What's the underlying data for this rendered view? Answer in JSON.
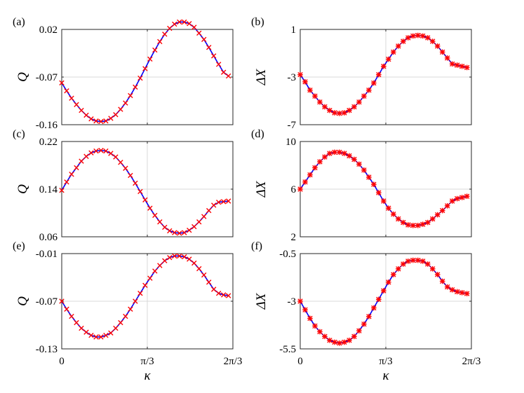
{
  "chart_data": [
    {
      "type": "line",
      "panel": "(a)",
      "ylabel": "Q",
      "xlabel": "",
      "ylim": [
        -0.16,
        0.02
      ],
      "yticks": [
        "0.02",
        "-0.07",
        "-0.16"
      ],
      "ytick_values": [
        0.02,
        -0.07,
        -0.16
      ],
      "xlim": [
        0,
        2.0944
      ],
      "xticks": [
        "0",
        "π/3",
        "2π/3"
      ],
      "xtick_values": [
        0,
        1.0472,
        2.0944
      ],
      "grid": true,
      "series": [
        {
          "marker": "x",
          "color": "#ff0000",
          "line_color": "#0000ff",
          "x": [
            0,
            0.06,
            0.12,
            0.18,
            0.24,
            0.3,
            0.36,
            0.42,
            0.48,
            0.54,
            0.6,
            0.66,
            0.72,
            0.78,
            0.84,
            0.9,
            0.96,
            1.02,
            1.08,
            1.14,
            1.2,
            1.26,
            1.32,
            1.38,
            1.44,
            1.5,
            1.56,
            1.62,
            1.68,
            1.74,
            1.8,
            1.86,
            1.92,
            1.98,
            2.04
          ],
          "y": [
            -0.081,
            -0.096,
            -0.11,
            -0.122,
            -0.133,
            -0.142,
            -0.149,
            -0.153,
            -0.154,
            -0.153,
            -0.148,
            -0.141,
            -0.131,
            -0.119,
            -0.105,
            -0.089,
            -0.072,
            -0.054,
            -0.036,
            -0.019,
            -0.003,
            0.011,
            0.022,
            0.03,
            0.034,
            0.034,
            0.031,
            0.024,
            0.013,
            0.001,
            -0.014,
            -0.03,
            -0.046,
            -0.061,
            -0.068
          ]
        }
      ]
    },
    {
      "type": "line",
      "panel": "(b)",
      "ylabel": "ΔX",
      "xlabel": "",
      "ylim": [
        -7,
        1
      ],
      "yticks": [
        "1",
        "-3",
        "-7"
      ],
      "ytick_values": [
        1,
        -3,
        -7
      ],
      "xlim": [
        0,
        2.0944
      ],
      "xticks": [
        "0",
        "π/3",
        "2π/3"
      ],
      "xtick_values": [
        0,
        1.0472,
        2.0944
      ],
      "grid": true,
      "series": [
        {
          "marker": "*",
          "color": "#ff0000",
          "line_color": "#0000ff",
          "x": [
            0,
            0.06,
            0.12,
            0.18,
            0.24,
            0.3,
            0.36,
            0.42,
            0.48,
            0.54,
            0.6,
            0.66,
            0.72,
            0.78,
            0.84,
            0.9,
            0.96,
            1.02,
            1.08,
            1.14,
            1.2,
            1.26,
            1.32,
            1.38,
            1.44,
            1.5,
            1.56,
            1.62,
            1.68,
            1.74,
            1.8,
            1.86,
            1.92,
            1.98,
            2.04
          ],
          "y": [
            -2.8,
            -3.4,
            -4.1,
            -4.6,
            -5.1,
            -5.5,
            -5.8,
            -6.0,
            -6.05,
            -6.0,
            -5.8,
            -5.5,
            -5.1,
            -4.6,
            -4.1,
            -3.5,
            -2.8,
            -2.1,
            -1.5,
            -0.9,
            -0.4,
            0.0,
            0.3,
            0.45,
            0.5,
            0.45,
            0.3,
            0.0,
            -0.4,
            -0.9,
            -1.4,
            -1.9,
            -2.0,
            -2.1,
            -2.2
          ]
        }
      ]
    },
    {
      "type": "line",
      "panel": "(c)",
      "ylabel": "Q",
      "xlabel": "",
      "ylim": [
        0.06,
        0.22
      ],
      "yticks": [
        "0.22",
        "0.14",
        "0.06"
      ],
      "ytick_values": [
        0.22,
        0.14,
        0.06
      ],
      "xlim": [
        0,
        2.0944
      ],
      "xticks": [
        "0",
        "π/3",
        "2π/3"
      ],
      "xtick_values": [
        0,
        1.0472,
        2.0944
      ],
      "grid": true,
      "series": [
        {
          "marker": "x",
          "color": "#ff0000",
          "line_color": "#0000ff",
          "x": [
            0,
            0.06,
            0.12,
            0.18,
            0.24,
            0.3,
            0.36,
            0.42,
            0.48,
            0.54,
            0.6,
            0.66,
            0.72,
            0.78,
            0.84,
            0.9,
            0.96,
            1.02,
            1.08,
            1.14,
            1.2,
            1.26,
            1.32,
            1.38,
            1.44,
            1.5,
            1.56,
            1.62,
            1.68,
            1.74,
            1.8,
            1.86,
            1.92,
            1.98,
            2.04
          ],
          "y": [
            0.138,
            0.152,
            0.165,
            0.176,
            0.187,
            0.195,
            0.201,
            0.204,
            0.205,
            0.204,
            0.2,
            0.194,
            0.185,
            0.175,
            0.163,
            0.15,
            0.136,
            0.122,
            0.108,
            0.096,
            0.085,
            0.076,
            0.07,
            0.067,
            0.066,
            0.067,
            0.071,
            0.077,
            0.085,
            0.094,
            0.104,
            0.113,
            0.118,
            0.119,
            0.12
          ]
        }
      ]
    },
    {
      "type": "line",
      "panel": "(d)",
      "ylabel": "ΔX",
      "xlabel": "",
      "ylim": [
        2,
        10
      ],
      "yticks": [
        "10",
        "6",
        "2"
      ],
      "ytick_values": [
        10,
        6,
        2
      ],
      "xlim": [
        0,
        2.0944
      ],
      "xticks": [
        "0",
        "π/3",
        "2π/3"
      ],
      "xtick_values": [
        0,
        1.0472,
        2.0944
      ],
      "grid": true,
      "series": [
        {
          "marker": "*",
          "color": "#ff0000",
          "line_color": "#0000ff",
          "x": [
            0,
            0.06,
            0.12,
            0.18,
            0.24,
            0.3,
            0.36,
            0.42,
            0.48,
            0.54,
            0.6,
            0.66,
            0.72,
            0.78,
            0.84,
            0.9,
            0.96,
            1.02,
            1.08,
            1.14,
            1.2,
            1.26,
            1.32,
            1.38,
            1.44,
            1.5,
            1.56,
            1.62,
            1.68,
            1.74,
            1.8,
            1.86,
            1.92,
            1.98,
            2.04
          ],
          "y": [
            6.0,
            6.6,
            7.2,
            7.8,
            8.3,
            8.7,
            9.0,
            9.1,
            9.1,
            9.0,
            8.8,
            8.5,
            8.1,
            7.6,
            7.0,
            6.4,
            5.7,
            5.0,
            4.4,
            3.9,
            3.5,
            3.2,
            3.0,
            2.95,
            2.95,
            3.05,
            3.2,
            3.5,
            3.85,
            4.2,
            4.6,
            5.0,
            5.2,
            5.3,
            5.4
          ]
        }
      ]
    },
    {
      "type": "line",
      "panel": "(e)",
      "ylabel": "Q",
      "xlabel": "κ",
      "ylim": [
        -0.13,
        -0.01
      ],
      "yticks": [
        "-0.01",
        "-0.07",
        "-0.13"
      ],
      "ytick_values": [
        -0.01,
        -0.07,
        -0.13
      ],
      "xlim": [
        0,
        2.0944
      ],
      "xticks": [
        "0",
        "π/3",
        "2π/3"
      ],
      "xtick_values": [
        0,
        1.0472,
        2.0944
      ],
      "grid": true,
      "series": [
        {
          "marker": "x",
          "color": "#ff0000",
          "line_color": "#0000ff",
          "x": [
            0,
            0.06,
            0.12,
            0.18,
            0.24,
            0.3,
            0.36,
            0.42,
            0.48,
            0.54,
            0.6,
            0.66,
            0.72,
            0.78,
            0.84,
            0.9,
            0.96,
            1.02,
            1.08,
            1.14,
            1.2,
            1.26,
            1.32,
            1.38,
            1.44,
            1.5,
            1.56,
            1.62,
            1.68,
            1.74,
            1.8,
            1.86,
            1.92,
            1.98,
            2.04
          ],
          "y": [
            -0.07,
            -0.08,
            -0.089,
            -0.097,
            -0.104,
            -0.109,
            -0.113,
            -0.115,
            -0.115,
            -0.113,
            -0.11,
            -0.104,
            -0.097,
            -0.089,
            -0.08,
            -0.07,
            -0.06,
            -0.05,
            -0.041,
            -0.032,
            -0.025,
            -0.019,
            -0.015,
            -0.013,
            -0.013,
            -0.014,
            -0.017,
            -0.022,
            -0.029,
            -0.037,
            -0.046,
            -0.055,
            -0.06,
            -0.062,
            -0.063
          ]
        }
      ]
    },
    {
      "type": "line",
      "panel": "(f)",
      "ylabel": "ΔX",
      "xlabel": "κ",
      "ylim": [
        -5.5,
        -0.5
      ],
      "yticks": [
        "-0.5",
        "-3",
        "-5.5"
      ],
      "ytick_values": [
        -0.5,
        -3,
        -5.5
      ],
      "xlim": [
        0,
        2.0944
      ],
      "xticks": [
        "0",
        "π/3",
        "2π/3"
      ],
      "xtick_values": [
        0,
        1.0472,
        2.0944
      ],
      "grid": true,
      "series": [
        {
          "marker": "*",
          "color": "#ff0000",
          "line_color": "#0000ff",
          "x": [
            0,
            0.06,
            0.12,
            0.18,
            0.24,
            0.3,
            0.36,
            0.42,
            0.48,
            0.54,
            0.6,
            0.66,
            0.72,
            0.78,
            0.84,
            0.9,
            0.96,
            1.02,
            1.08,
            1.14,
            1.2,
            1.26,
            1.32,
            1.38,
            1.44,
            1.5,
            1.56,
            1.62,
            1.68,
            1.74,
            1.8,
            1.86,
            1.92,
            1.98,
            2.04
          ],
          "y": [
            -3.0,
            -3.45,
            -3.9,
            -4.3,
            -4.6,
            -4.85,
            -5.05,
            -5.15,
            -5.2,
            -5.15,
            -5.05,
            -4.85,
            -4.55,
            -4.2,
            -3.8,
            -3.35,
            -2.9,
            -2.45,
            -2.0,
            -1.6,
            -1.3,
            -1.05,
            -0.9,
            -0.85,
            -0.85,
            -0.9,
            -1.05,
            -1.3,
            -1.6,
            -1.95,
            -2.25,
            -2.4,
            -2.5,
            -2.55,
            -2.6
          ]
        }
      ]
    }
  ]
}
